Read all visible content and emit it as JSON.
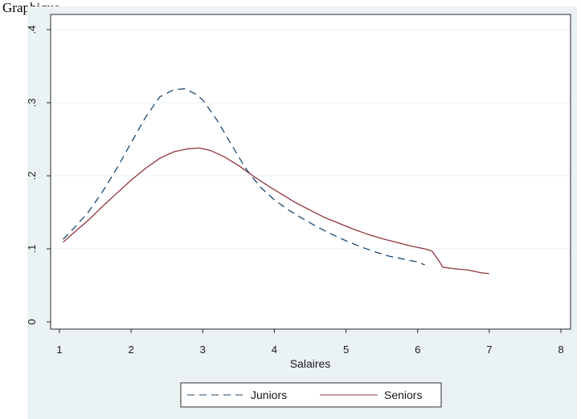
{
  "document": {
    "label": "Graphique"
  },
  "colors": {
    "outer_background": "#eaf2f3",
    "plot_background": "#ffffff",
    "grid": "#eaf2f3",
    "juniors": "#1a476f",
    "seniors": "#90353b"
  },
  "chart_data": {
    "type": "line",
    "title": "",
    "xlabel": "Salaires",
    "ylabel": "",
    "xlim": [
      1,
      8
    ],
    "ylim": [
      0,
      0.4
    ],
    "x_ticks": [
      1,
      2,
      3,
      4,
      5,
      6,
      7,
      8
    ],
    "x_tick_labels": [
      "1",
      "2",
      "3",
      "4",
      "5",
      "6",
      "7",
      "8"
    ],
    "y_ticks": [
      0,
      0.1,
      0.2,
      0.3,
      0.4
    ],
    "y_tick_labels": [
      "0",
      ".1",
      ".2",
      ".3",
      ".4"
    ],
    "grid": "horizontal",
    "legend_position": "bottom",
    "series": [
      {
        "name": "Juniors",
        "style": "dashed",
        "color": "#1a476f",
        "x": [
          1.05,
          1.2,
          1.4,
          1.6,
          1.8,
          2.0,
          2.2,
          2.4,
          2.6,
          2.75,
          2.9,
          3.0,
          3.2,
          3.4,
          3.6,
          3.8,
          4.0,
          4.2,
          4.4,
          4.6,
          4.8,
          5.0,
          5.2,
          5.4,
          5.6,
          5.8,
          6.0,
          6.1
        ],
        "y": [
          0.113,
          0.128,
          0.15,
          0.178,
          0.21,
          0.245,
          0.28,
          0.308,
          0.318,
          0.319,
          0.312,
          0.304,
          0.276,
          0.243,
          0.21,
          0.185,
          0.167,
          0.153,
          0.141,
          0.13,
          0.12,
          0.111,
          0.103,
          0.096,
          0.09,
          0.086,
          0.082,
          0.078
        ]
      },
      {
        "name": "Seniors",
        "style": "solid",
        "color": "#90353b",
        "x": [
          1.05,
          1.2,
          1.4,
          1.6,
          1.8,
          2.0,
          2.2,
          2.4,
          2.6,
          2.8,
          2.95,
          3.1,
          3.3,
          3.5,
          3.7,
          3.9,
          4.1,
          4.3,
          4.5,
          4.7,
          4.9,
          5.1,
          5.3,
          5.5,
          5.7,
          5.9,
          6.1,
          6.2,
          6.3,
          6.35,
          6.5,
          6.7,
          6.9,
          7.0
        ],
        "y": [
          0.109,
          0.122,
          0.139,
          0.158,
          0.176,
          0.194,
          0.21,
          0.224,
          0.233,
          0.237,
          0.238,
          0.235,
          0.226,
          0.214,
          0.2,
          0.187,
          0.175,
          0.163,
          0.153,
          0.143,
          0.135,
          0.127,
          0.12,
          0.114,
          0.109,
          0.104,
          0.1,
          0.097,
          0.083,
          0.075,
          0.073,
          0.071,
          0.067,
          0.066
        ]
      }
    ]
  }
}
